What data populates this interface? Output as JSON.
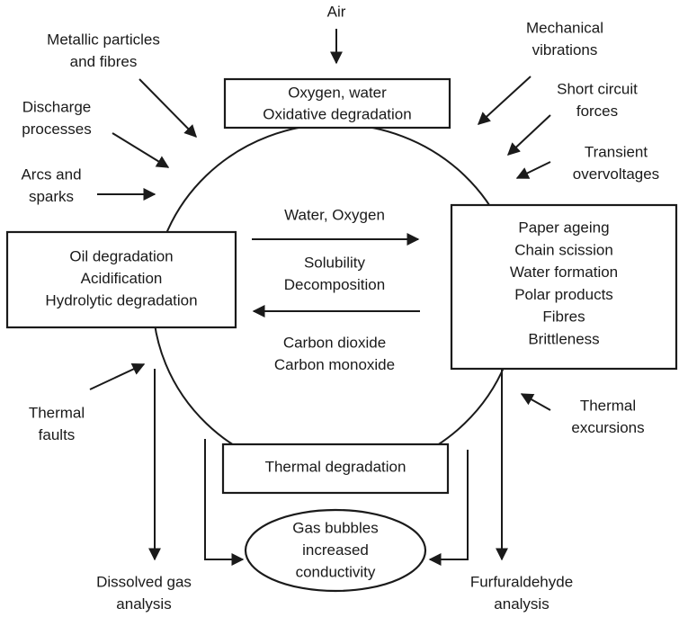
{
  "boxes": {
    "top": [
      "Oxygen, water",
      "Oxidative degradation"
    ],
    "left": [
      "Oil degradation",
      "Acidification",
      "Hydrolytic degradation"
    ],
    "right": [
      "Paper ageing",
      "Chain scission",
      "Water formation",
      "Polar products",
      "Fibres",
      "Brittleness"
    ],
    "bottom": [
      "Thermal degradation"
    ],
    "ellipse": [
      "Gas bubbles",
      "increased",
      "conductivity"
    ]
  },
  "influences": [
    [
      "Air"
    ],
    [
      "Metallic particles",
      "and fibres"
    ],
    [
      "Discharge",
      "processes"
    ],
    [
      "Arcs and",
      "sparks"
    ],
    [
      "Mechanical",
      "vibrations"
    ],
    [
      "Short circuit",
      "forces"
    ],
    [
      "Transient",
      "overvoltages"
    ],
    [
      "Thermal",
      "faults"
    ],
    [
      "Thermal",
      "excursions"
    ]
  ],
  "flows": [
    [
      "Water, Oxygen"
    ],
    [
      "Solubility",
      "Decomposition"
    ],
    [
      "Carbon dioxide",
      "Carbon monoxide"
    ]
  ],
  "outputs": [
    [
      "Dissolved gas",
      "analysis"
    ],
    [
      "Furfuraldehyde",
      "analysis"
    ]
  ]
}
